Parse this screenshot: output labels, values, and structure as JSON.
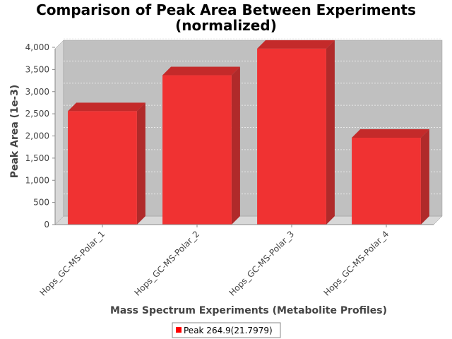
{
  "chart_data": {
    "type": "bar",
    "title_line1": "Comparison of Peak Area Between Experiments",
    "title_line2": "(normalized)",
    "xlabel": "Mass Spectrum Experiments (Metabolite Profiles)",
    "ylabel": "Peak Area (1e-3)",
    "categories": [
      "Hops_GC-MS-Polar_1",
      "Hops_GC-MS-Polar_2",
      "Hops_GC-MS-Polar_3",
      "Hops_GC-MS-Polar_4"
    ],
    "series": [
      {
        "name": "Peak 264.9(21.7979)",
        "values": [
          2560,
          3370,
          3970,
          1960
        ]
      }
    ],
    "ylim": [
      0,
      4000
    ],
    "yticks": [
      0,
      500,
      1000,
      1500,
      2000,
      2500,
      3000,
      3500,
      4000
    ],
    "ytick_labels": [
      "0",
      "500",
      "1,000",
      "1,500",
      "2,000",
      "2,500",
      "3,000",
      "3,500",
      "4,000"
    ],
    "grid": true,
    "three_d": true,
    "legend_position": "bottom",
    "colors": {
      "bar_front": "#f03232",
      "bar_top": "#c42a2a",
      "bar_side": "#b02a2a",
      "plot_back": "#c0c0c0",
      "plot_wall": "#d8d8d8",
      "plot_floor": "#d8d8d8",
      "grid": "#e8e8e8",
      "legend_swatch": "#ff0000"
    }
  }
}
